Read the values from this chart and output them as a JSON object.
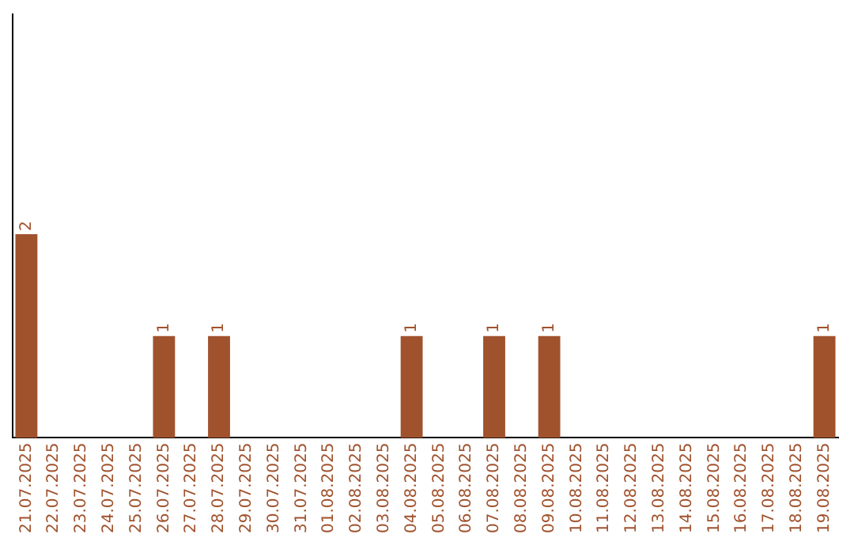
{
  "chart_data": {
    "type": "bar",
    "categories": [
      "21.07.2025",
      "22.07.2025",
      "23.07.2025",
      "24.07.2025",
      "25.07.2025",
      "26.07.2025",
      "27.07.2025",
      "28.07.2025",
      "29.07.2025",
      "30.07.2025",
      "31.07.2025",
      "01.08.2025",
      "02.08.2025",
      "03.08.2025",
      "04.08.2025",
      "05.08.2025",
      "06.08.2025",
      "07.08.2025",
      "08.08.2025",
      "09.08.2025",
      "10.08.2025",
      "11.08.2025",
      "12.08.2025",
      "13.08.2025",
      "14.08.2025",
      "15.08.2025",
      "16.08.2025",
      "17.08.2025",
      "18.08.2025",
      "19.08.2025"
    ],
    "values": [
      2,
      0,
      0,
      0,
      0,
      1,
      0,
      1,
      0,
      0,
      0,
      0,
      0,
      0,
      1,
      0,
      0,
      1,
      0,
      1,
      0,
      0,
      0,
      0,
      0,
      0,
      0,
      0,
      0,
      1
    ],
    "value_labels": [
      "2",
      null,
      null,
      null,
      null,
      "1",
      null,
      "1",
      null,
      null,
      null,
      null,
      null,
      null,
      "1",
      null,
      null,
      "1",
      null,
      "1",
      null,
      null,
      null,
      null,
      null,
      null,
      null,
      null,
      null,
      "1"
    ],
    "color": "#a0522d",
    "ylim": [
      0,
      4.16
    ],
    "grid": false,
    "legend": false,
    "tick_labels": "x"
  }
}
